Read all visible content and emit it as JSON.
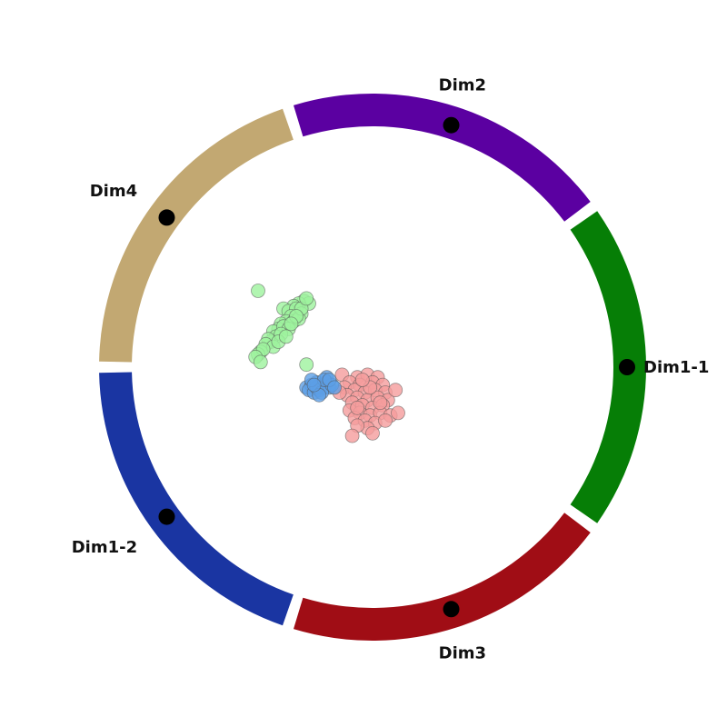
{
  "chart_data": {
    "type": "scatter",
    "title": "",
    "xlabel": "",
    "ylabel": "",
    "grid": false,
    "legend": "none",
    "anchors": [
      {
        "label": "Dim1-1",
        "angle_deg": 0,
        "color": "#067e06"
      },
      {
        "label": "Dim2",
        "angle_deg": 72,
        "color": "#5b00a1"
      },
      {
        "label": "Dim4",
        "angle_deg": 144,
        "color": "#c2a872"
      },
      {
        "label": "Dim1-2",
        "angle_deg": 216,
        "color": "#1a35a2"
      },
      {
        "label": "Dim3",
        "angle_deg": 288,
        "color": "#a00d15"
      }
    ],
    "series": [
      {
        "color": "#9df39d",
        "points": [
          [
            -0.45,
            0.3
          ],
          [
            -0.27,
            0.26
          ],
          [
            -0.25,
            0.25
          ],
          [
            -0.29,
            0.25
          ],
          [
            -0.31,
            0.24
          ],
          [
            -0.35,
            0.23
          ],
          [
            -0.33,
            0.22
          ],
          [
            -0.3,
            0.23
          ],
          [
            -0.28,
            0.21
          ],
          [
            -0.32,
            0.2
          ],
          [
            -0.34,
            0.18
          ],
          [
            -0.36,
            0.17
          ],
          [
            -0.31,
            0.18
          ],
          [
            -0.29,
            0.19
          ],
          [
            -0.37,
            0.15
          ],
          [
            -0.39,
            0.14
          ],
          [
            -0.35,
            0.16
          ],
          [
            -0.33,
            0.15
          ],
          [
            -0.38,
            0.12
          ],
          [
            -0.4,
            0.1
          ],
          [
            -0.41,
            0.11
          ],
          [
            -0.36,
            0.13
          ],
          [
            -0.42,
            0.09
          ],
          [
            -0.39,
            0.08
          ],
          [
            -0.44,
            0.06
          ],
          [
            -0.45,
            0.05
          ],
          [
            -0.37,
            0.1
          ],
          [
            -0.34,
            0.12
          ],
          [
            -0.43,
            0.07
          ],
          [
            -0.28,
            0.23
          ],
          [
            -0.3,
            0.2
          ],
          [
            -0.32,
            0.17
          ],
          [
            -0.26,
            0.27
          ],
          [
            -0.46,
            0.04
          ],
          [
            -0.44,
            0.02
          ],
          [
            -0.26,
            0.01
          ]
        ]
      },
      {
        "color": "#f59c9c",
        "points": [
          [
            -0.12,
            -0.03
          ],
          [
            -0.06,
            -0.04
          ],
          [
            -0.02,
            -0.03
          ],
          [
            0.02,
            -0.04
          ],
          [
            -0.09,
            -0.06
          ],
          [
            -0.05,
            -0.07
          ],
          [
            0.0,
            -0.06
          ],
          [
            0.04,
            -0.07
          ],
          [
            -0.11,
            -0.08
          ],
          [
            -0.07,
            -0.09
          ],
          [
            -0.03,
            -0.1
          ],
          [
            0.01,
            -0.09
          ],
          [
            0.05,
            -0.1
          ],
          [
            -0.1,
            -0.11
          ],
          [
            -0.06,
            -0.12
          ],
          [
            -0.02,
            -0.13
          ],
          [
            0.02,
            -0.12
          ],
          [
            0.06,
            -0.13
          ],
          [
            -0.08,
            -0.14
          ],
          [
            -0.04,
            -0.15
          ],
          [
            0.0,
            -0.16
          ],
          [
            0.04,
            -0.15
          ],
          [
            -0.09,
            -0.17
          ],
          [
            -0.05,
            -0.18
          ],
          [
            -0.01,
            -0.19
          ],
          [
            0.03,
            -0.18
          ],
          [
            0.07,
            -0.19
          ],
          [
            -0.07,
            -0.2
          ],
          [
            -0.03,
            -0.21
          ],
          [
            0.01,
            -0.22
          ],
          [
            0.05,
            -0.21
          ],
          [
            -0.02,
            -0.24
          ],
          [
            -0.06,
            -0.23
          ],
          [
            0.0,
            -0.26
          ],
          [
            0.09,
            -0.09
          ],
          [
            0.1,
            -0.18
          ],
          [
            -0.08,
            -0.27
          ],
          [
            -0.01,
            -0.08
          ],
          [
            -0.13,
            -0.1
          ],
          [
            -0.04,
            -0.05
          ],
          [
            0.03,
            -0.14
          ],
          [
            -0.06,
            -0.16
          ]
        ]
      },
      {
        "color": "#5c9fe6",
        "points": [
          [
            -0.26,
            -0.08
          ],
          [
            -0.24,
            -0.07
          ],
          [
            -0.22,
            -0.06
          ],
          [
            -0.2,
            -0.07
          ],
          [
            -0.18,
            -0.06
          ],
          [
            -0.25,
            -0.09
          ],
          [
            -0.23,
            -0.1
          ],
          [
            -0.21,
            -0.09
          ],
          [
            -0.19,
            -0.08
          ],
          [
            -0.17,
            -0.08
          ],
          [
            -0.22,
            -0.08
          ],
          [
            -0.2,
            -0.1
          ],
          [
            -0.24,
            -0.05
          ],
          [
            -0.18,
            -0.04
          ],
          [
            -0.21,
            -0.11
          ],
          [
            -0.16,
            -0.07
          ],
          [
            -0.19,
            -0.05
          ],
          [
            -0.23,
            -0.07
          ],
          [
            -0.17,
            -0.05
          ],
          [
            -0.15,
            -0.08
          ]
        ]
      }
    ]
  }
}
